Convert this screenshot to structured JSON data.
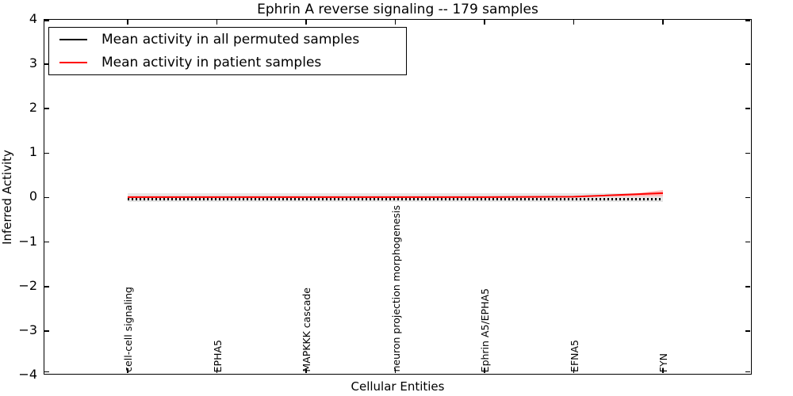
{
  "title": "Ephrin A  reverse signaling -- 179 samples",
  "axes": {
    "ylabel": "Inferred Activity",
    "xlabel": "Cellular Entities",
    "yticks": [
      "4",
      "3",
      "2",
      "1",
      "0",
      "−1",
      "−2",
      "−3",
      "−4"
    ]
  },
  "legend": {
    "items": [
      {
        "label": "Mean activity in all permuted samples",
        "color": "#000000"
      },
      {
        "label": "Mean activity in patient samples",
        "color": "#ff0000"
      }
    ]
  },
  "chart_data": {
    "type": "line",
    "title": "Ephrin A  reverse signaling -- 179 samples",
    "xlabel": "Cellular Entities",
    "ylabel": "Inferred Activity",
    "ylim": [
      -4,
      4
    ],
    "grid": false,
    "legend_position": "upper left",
    "categories": [
      "cell-cell signaling",
      "EPHA5",
      "MAPKKK cascade",
      "neuron projection morphogenesis",
      "Ephrin A5/EPHA5",
      "EFNA5",
      "FYN"
    ],
    "series": [
      {
        "name": "Mean activity in all permuted samples",
        "color": "#000000",
        "line_style": "dashed",
        "values": [
          -0.04,
          -0.04,
          -0.04,
          -0.04,
          -0.04,
          -0.04,
          -0.04
        ],
        "band": {
          "color": "#e6e6e6",
          "lower": -0.1,
          "upper": 0.1
        }
      },
      {
        "name": "Mean activity in patient samples",
        "color": "#ff0000",
        "line_style": "solid",
        "values": [
          0.01,
          0.01,
          0.01,
          0.01,
          0.01,
          0.02,
          0.1
        ],
        "end_band": {
          "color": "#ffbbbb",
          "from_x": 5.4,
          "upper": 0.17,
          "lower": 0.03
        }
      }
    ]
  }
}
